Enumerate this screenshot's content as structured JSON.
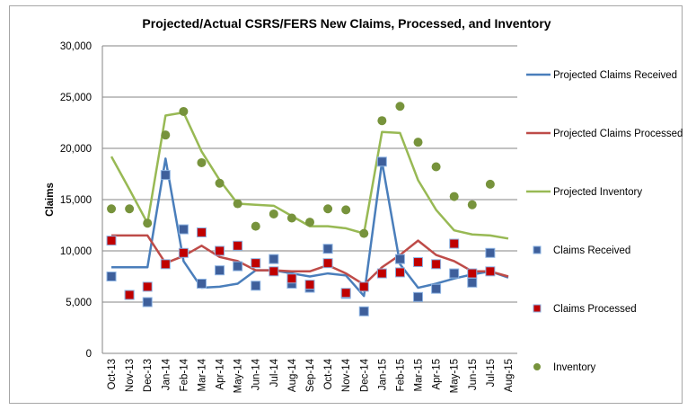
{
  "chart_data": {
    "type": "line",
    "title": "Projected/Actual CSRS/FERS New Claims, Processed, and Inventory",
    "xlabel": "",
    "ylabel": "Claims",
    "ylim": [
      0,
      30000
    ],
    "yticks": [
      0,
      5000,
      10000,
      15000,
      20000,
      25000,
      30000
    ],
    "ytick_labels": [
      "0",
      "5,000",
      "10,000",
      "15,000",
      "20,000",
      "25,000",
      "30,000"
    ],
    "grid": true,
    "legend_position": "right",
    "categories": [
      "Oct-13",
      "Nov-13",
      "Dec-13",
      "Jan-14",
      "Feb-14",
      "Mar-14",
      "Apr-14",
      "May-14",
      "Jun-14",
      "Jul-14",
      "Aug-14",
      "Sep-14",
      "Oct-14",
      "Nov-14",
      "Dec-14",
      "Jan-15",
      "Feb-15",
      "Mar-15",
      "Apr-15",
      "May-15",
      "Jun-15",
      "Jul-15",
      "Aug-15"
    ],
    "series": [
      {
        "name": "Projected Claims Received",
        "kind": "line",
        "color": "#4a7ebb",
        "values": [
          8400,
          8400,
          8400,
          19000,
          9000,
          6400,
          6500,
          6800,
          8100,
          8100,
          7800,
          7500,
          7800,
          7600,
          5600,
          18700,
          8700,
          6400,
          6800,
          7300,
          7700,
          8000,
          7400
        ]
      },
      {
        "name": "Projected Claims Processed",
        "kind": "line",
        "color": "#be4b48",
        "values": [
          11500,
          11500,
          11500,
          8800,
          9500,
          10500,
          9400,
          9000,
          8100,
          8100,
          8000,
          8000,
          8600,
          7800,
          6700,
          8400,
          9600,
          11000,
          9600,
          9000,
          8000,
          8000,
          7500
        ]
      },
      {
        "name": "Projected Inventory",
        "kind": "line",
        "color": "#98b954",
        "values": [
          19200,
          16000,
          12700,
          23200,
          23500,
          19700,
          16900,
          14600,
          14500,
          14400,
          13400,
          12400,
          12400,
          12200,
          11700,
          21600,
          21500,
          16900,
          14000,
          12000,
          11600,
          11500,
          11200
        ]
      },
      {
        "name": "Claims Received",
        "kind": "marker-square",
        "color": "#3e5f9b",
        "values": [
          7500,
          5700,
          5000,
          17400,
          12100,
          6800,
          8100,
          8500,
          6600,
          9200,
          6800,
          6400,
          10200,
          5800,
          4100,
          18700,
          9200,
          5500,
          6300,
          7800,
          6900,
          9800,
          null
        ]
      },
      {
        "name": "Claims Processed",
        "kind": "marker-square",
        "color": "#c00000",
        "values": [
          11000,
          5700,
          6500,
          8700,
          9800,
          11800,
          10000,
          10500,
          8800,
          8000,
          7300,
          6700,
          8800,
          5900,
          6500,
          7800,
          7900,
          8900,
          8700,
          10700,
          7800,
          8000,
          null
        ]
      },
      {
        "name": "Inventory",
        "kind": "marker-circle",
        "color": "#77933c",
        "values": [
          14100,
          14100,
          12700,
          21300,
          23600,
          18600,
          16600,
          14600,
          12400,
          13600,
          13200,
          12800,
          14100,
          14000,
          11700,
          22700,
          24100,
          20600,
          18200,
          15300,
          14500,
          16500,
          null
        ]
      }
    ]
  }
}
